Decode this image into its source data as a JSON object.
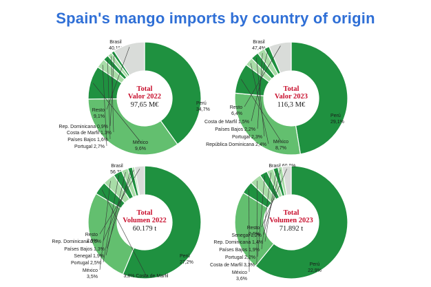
{
  "title": "Spain's mango imports by country of origin",
  "colors": {
    "dark": "#1f9140",
    "light": "#63bf6f",
    "pale": "#a8dca7",
    "grey": "#d9dcd9",
    "accent": "#c8102e",
    "title": "#2f6fd6"
  },
  "chart_data": [
    {
      "type": "pie",
      "center_title": [
        "Total",
        "Valor 2022"
      ],
      "center_value": "97,65 M€",
      "slices": [
        {
          "label": "Brasil",
          "value_text": "40,1%",
          "value": 40.1
        },
        {
          "label": "Perú",
          "value_text": "34,7%",
          "value": 34.7
        },
        {
          "label": "México",
          "value_text": "9,6%",
          "value": 9.6
        },
        {
          "label": "Portugal",
          "value_text": "2,7%",
          "value": 2.7
        },
        {
          "label": "Países Bajos",
          "value_text": "1,6%",
          "value": 1.6
        },
        {
          "label": "Costa de Marfil",
          "value_text": "1,3%",
          "value": 1.3
        },
        {
          "label": "Rep. Dominicana",
          "value_text": "0,9%",
          "value": 0.9
        },
        {
          "label": "Resto",
          "value_text": "9,1%",
          "value": 9.1
        }
      ]
    },
    {
      "type": "pie",
      "center_title": [
        "Total",
        "Valor 2023"
      ],
      "center_value": "116,3 M€",
      "slices": [
        {
          "label": "Brasil",
          "value_text": "47,4%",
          "value": 47.4
        },
        {
          "label": "Perú",
          "value_text": "29,1%",
          "value": 29.1
        },
        {
          "label": "México",
          "value_text": "8,7%",
          "value": 8.7
        },
        {
          "label": "República Dominicana",
          "value_text": "2,4%",
          "value": 2.4
        },
        {
          "label": "Portugal",
          "value_text": "2,3%",
          "value": 2.3
        },
        {
          "label": "Países Bajos",
          "value_text": "2,2%",
          "value": 2.2
        },
        {
          "label": "Costa de Marfil",
          "value_text": "1,5%",
          "value": 1.5
        },
        {
          "label": "Resto",
          "value_text": "6,4%",
          "value": 6.4
        }
      ]
    },
    {
      "type": "pie",
      "center_title": [
        "Total",
        "Volumen 2022"
      ],
      "center_value": "60.179 t",
      "slices": [
        {
          "label": "Brasil",
          "value_text": "56,3%",
          "value": 56.3
        },
        {
          "label": "Perú",
          "value_text": "27,2%",
          "value": 27.2
        },
        {
          "label": "Costa de Marfil",
          "value_text": "3,8%",
          "value": 3.8
        },
        {
          "label": "México",
          "value_text": "3,5%",
          "value": 3.5
        },
        {
          "label": "Portugal",
          "value_text": "2,5%",
          "value": 2.5
        },
        {
          "label": "Senegal",
          "value_text": "1,9%",
          "value": 1.9
        },
        {
          "label": "Países Bajos",
          "value_text": "1,3%",
          "value": 1.3
        },
        {
          "label": "Rep. Dominicana",
          "value_text": "0,6%",
          "value": 0.6
        },
        {
          "label": "Resto",
          "value_text": "2,9%",
          "value": 2.9
        }
      ]
    },
    {
      "type": "pie",
      "center_title": [
        "Total",
        "Volumen 2023"
      ],
      "center_value": "71.892 t",
      "slices": [
        {
          "label": "Brasil",
          "value_text": "60,9%",
          "value": 60.9
        },
        {
          "label": "Perú",
          "value_text": "22,9%",
          "value": 22.9
        },
        {
          "label": "México",
          "value_text": "3,6%",
          "value": 3.6
        },
        {
          "label": "Costa de Marfil",
          "value_text": "3,3%",
          "value": 3.3
        },
        {
          "label": "Portugal",
          "value_text": "2,2%",
          "value": 2.2
        },
        {
          "label": "Países Bajos",
          "value_text": "1,9%",
          "value": 1.9
        },
        {
          "label": "Rep. Dominicana",
          "value_text": "1,4%",
          "value": 1.4
        },
        {
          "label": "Senegal",
          "value_text": "1,2%",
          "value": 1.2
        },
        {
          "label": "Resto",
          "value_text": "2,6%",
          "value": 2.6
        }
      ]
    }
  ]
}
